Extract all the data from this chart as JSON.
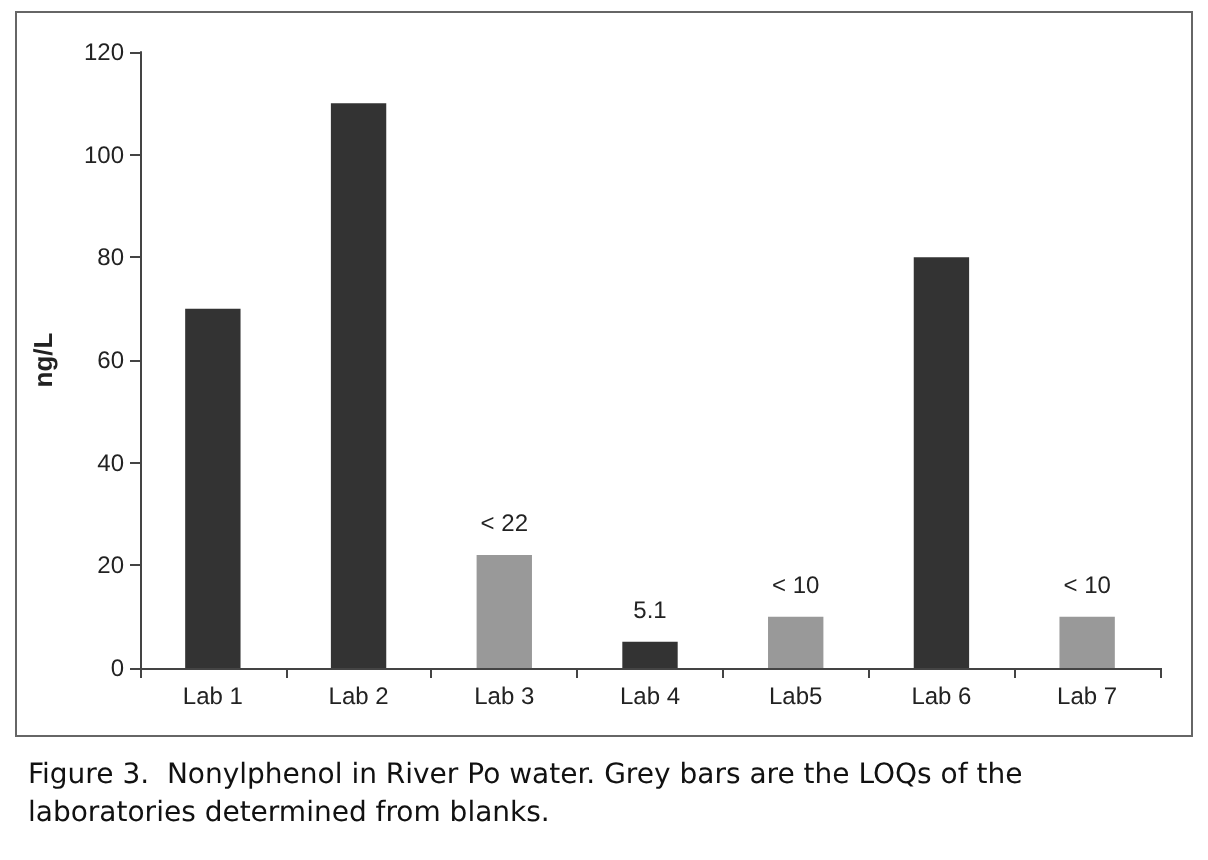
{
  "chart_data": {
    "type": "bar",
    "ylabel": "ng/L",
    "categories": [
      "Lab 1",
      "Lab 2",
      "Lab 3",
      "Lab 4",
      "Lab5",
      "Lab 6",
      "Lab 7"
    ],
    "values": [
      70,
      110,
      22,
      5.1,
      10,
      80,
      10
    ],
    "colors": [
      "#333333",
      "#333333",
      "#999999",
      "#333333",
      "#999999",
      "#333333",
      "#999999"
    ],
    "value_labels": [
      null,
      null,
      "< 22",
      "5.1",
      "< 10",
      null,
      "< 10"
    ],
    "ylim": [
      0,
      120
    ],
    "yticks": [
      0,
      20,
      40,
      60,
      80,
      100,
      120
    ],
    "grid": false,
    "annotations": [
      "Figure 3.  Nonylphenol in River Po water. Grey bars are the LOQs of the laboratories determined from blanks."
    ]
  }
}
